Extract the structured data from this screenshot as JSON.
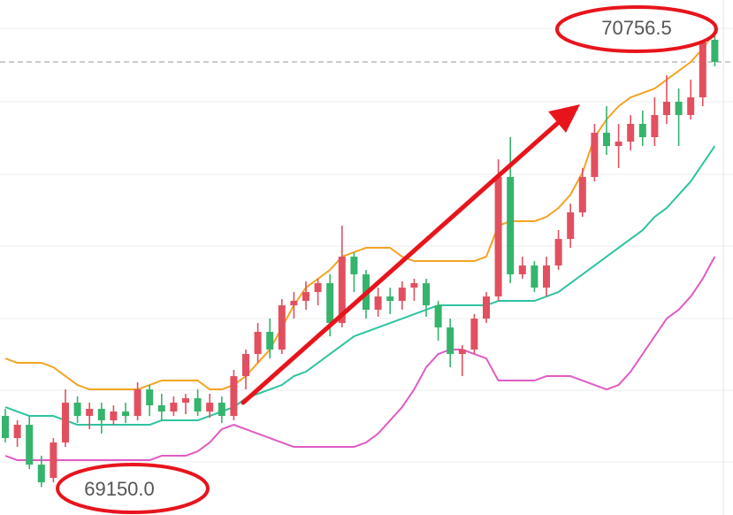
{
  "chart_data": {
    "type": "candlestick",
    "ylim": [
      69052,
      70856
    ],
    "up_color": "#e2505f",
    "down_color": "#35b46c",
    "open": [
      69399,
      69321.5,
      69368,
      69228.5,
      69182,
      69306,
      69445.5,
      69399,
      69423.8,
      69383.5,
      69414.5,
      69399,
      69492,
      69436.2,
      69414.5,
      69445.5,
      69461,
      69414.5,
      69445.5,
      69399,
      69538.5,
      69616,
      69693.5,
      69631.5,
      69786.5,
      69802,
      69833,
      69864,
      69724.5,
      69957,
      69895,
      69771,
      69817.5,
      69802,
      69848.5,
      69864,
      69786.5,
      69709,
      69616,
      69631.5,
      69740,
      69817.5,
      70236,
      69895,
      69926,
      69848.5,
      69926,
      70019,
      70112,
      70236,
      70391,
      70344.5,
      70360,
      70422,
      70375.5,
      70453,
      70499.5,
      70453,
      70515,
      70716.5
    ],
    "high": [
      69423.8,
      69383.5,
      69399,
      69259.5,
      69321.5,
      69492,
      69467.2,
      69445.5,
      69445.5,
      69436.2,
      69445.5,
      69516.8,
      69507.5,
      69476.5,
      69467.2,
      69476.5,
      69492,
      69476.5,
      69467.2,
      69560.2,
      69631.5,
      69724.5,
      69740,
      69808.2,
      69833,
      69870.2,
      69879.5,
      69895,
      70065.5,
      69972.5,
      69910.5,
      69848.5,
      69848.5,
      69870.2,
      69879.5,
      69879.5,
      69802,
      69740,
      69647,
      69755.5,
      69833,
      70298,
      70375.5,
      69957,
      69941.5,
      69957,
      70050,
      70143,
      70267,
      70422,
      70484,
      70422,
      70453,
      70468.5,
      70515,
      70592.5,
      70546,
      70577,
      70732,
      70756.5
    ],
    "low": [
      69306,
      69290.5,
      69213,
      69150,
      69166.5,
      69290.5,
      69374.2,
      69352.5,
      69337,
      69368,
      69374.2,
      69383.5,
      69399,
      69383.5,
      69399,
      69405.2,
      69399,
      69392.8,
      69374.2,
      69383.5,
      69492,
      69585,
      69600.5,
      69616,
      69740,
      69771,
      69786.5,
      69678,
      69709,
      69833,
      69740,
      69746.2,
      69755.5,
      69771,
      69802,
      69746.2,
      69662.5,
      69569.5,
      69538.5,
      69616,
      69724.5,
      69802,
      69864,
      69879.5,
      69833,
      69817.5,
      69910.5,
      69988,
      70096.5,
      70220.5,
      70313.5,
      70267,
      70329,
      70344.5,
      70344.5,
      70422,
      70344.5,
      70437.5,
      70484,
      70623.5
    ],
    "close": [
      69321.5,
      69368,
      69228.5,
      69166.5,
      69306,
      69445.5,
      69399,
      69423.8,
      69383.5,
      69414.5,
      69399,
      69492,
      69436.2,
      69414.5,
      69445.5,
      69461,
      69414.5,
      69445.5,
      69399,
      69538.5,
      69616,
      69693.5,
      69631.5,
      69786.5,
      69802,
      69833,
      69864,
      69724.5,
      69957,
      69895,
      69771,
      69817.5,
      69802,
      69848.5,
      69864,
      69786.5,
      69709,
      69616,
      69631.5,
      69740,
      69817.5,
      70236,
      69895,
      69926,
      69848.5,
      69926,
      70019,
      70112,
      70236,
      70391,
      70344.5,
      70360,
      70422,
      70375.5,
      70453,
      70499.5,
      70453,
      70515,
      70716.5,
      70639
    ],
    "bands": [
      {
        "color": "#f4a425",
        "values": [
          69600.5,
          69585,
          69585,
          69585,
          69569.5,
          69538.5,
          69507.5,
          69492,
          69492,
          69492,
          69492,
          69492,
          69507.5,
          69523,
          69523,
          69523,
          69523,
          69492,
          69492,
          69507.5,
          69538.5,
          69585,
          69631.5,
          69709,
          69786.5,
          69848.5,
          69879.5,
          69910.5,
          69957,
          69972.5,
          69988,
          69988,
          69988,
          69957,
          69941.5,
          69941.5,
          69941.5,
          69941.5,
          69941.5,
          69941.5,
          69957,
          70065.5,
          70081,
          70081,
          70081,
          70096.5,
          70127.5,
          70174,
          70251.5,
          70375.5,
          70437.5,
          70484,
          70515,
          70530.5,
          70546,
          70577,
          70608,
          70639,
          70685.5,
          70747.5
        ]
      },
      {
        "color": "#2fc3a0",
        "values": [
          69430,
          69414.5,
          69399,
          69399,
          69399,
          69383.5,
          69368,
          69368,
          69368,
          69368,
          69368,
          69368,
          69368,
          69383.5,
          69383.5,
          69383.5,
          69383.5,
          69399,
          69414.5,
          69430,
          69461,
          69476.5,
          69492,
          69507.5,
          69538.5,
          69554,
          69585,
          69616,
          69647,
          69678,
          69693.5,
          69709,
          69724.5,
          69740,
          69755.5,
          69771,
          69786.5,
          69786.5,
          69786.5,
          69786.5,
          69786.5,
          69802,
          69802,
          69802,
          69802,
          69817.5,
          69833,
          69864,
          69895,
          69926,
          69957,
          69988,
          70019,
          70050,
          70096.5,
          70127.5,
          70174,
          70220.5,
          70282.5,
          70344.5
        ]
      },
      {
        "color": "#e05bc4",
        "values": [
          69259.5,
          69244,
          69244,
          69244,
          69244,
          69244,
          69244,
          69244,
          69244,
          69244,
          69244,
          69244,
          69244,
          69259.5,
          69259.5,
          69259.5,
          69275,
          69306,
          69352.5,
          69368,
          69352.5,
          69337,
          69321.5,
          69306,
          69290.5,
          69290.5,
          69290.5,
          69290.5,
          69290.5,
          69290.5,
          69306,
          69337,
          69383.5,
          69430,
          69492,
          69569.5,
          69616,
          69631.5,
          69631.5,
          69616,
          69600.5,
          69523,
          69523,
          69523,
          69523,
          69538.5,
          69538.5,
          69538.5,
          69523,
          69507.5,
          69492,
          69507.5,
          69554,
          69616,
          69678,
          69740,
          69771,
          69817.5,
          69879.5,
          69957
        ]
      }
    ],
    "high_value_label": "70756.5",
    "low_value_label": "69150.0"
  }
}
